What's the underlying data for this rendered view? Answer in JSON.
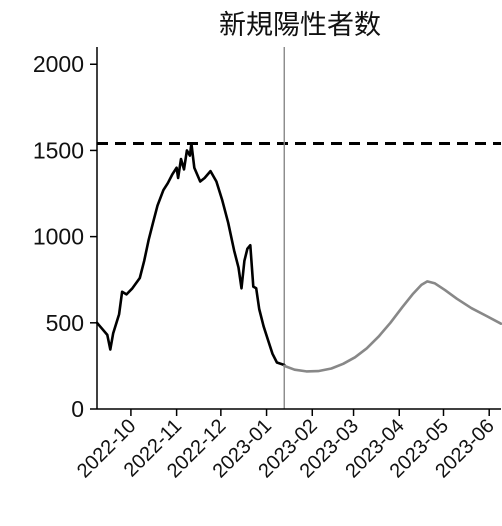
{
  "chart_data": {
    "type": "line",
    "title": "新規陽性者数",
    "xlabel": "",
    "ylabel": "",
    "xlim": [
      "2022-09-08",
      "2023-06-09"
    ],
    "ylim": [
      0,
      2100
    ],
    "y_ticks": [
      0,
      500,
      1000,
      1500,
      2000
    ],
    "x_tick_labels": [
      "2022-10",
      "2022-11",
      "2022-12",
      "2023-01",
      "2023-02",
      "2023-03",
      "2023-04",
      "2023-05",
      "2023-06"
    ],
    "x_tick_dates": [
      "2022-10-01",
      "2022-11-01",
      "2022-12-01",
      "2023-01-01",
      "2023-02-01",
      "2023-03-01",
      "2023-04-01",
      "2023-05-01",
      "2023-06-01"
    ],
    "reference_line": {
      "y": 1540,
      "style": "dashed",
      "color": "#000000"
    },
    "vertical_marker": {
      "x": "2023-01-13",
      "color": "#888888"
    },
    "series": [
      {
        "role": "observed",
        "color": "#000000",
        "points": [
          [
            "2022-09-08",
            500
          ],
          [
            "2022-09-12",
            460
          ],
          [
            "2022-09-15",
            430
          ],
          [
            "2022-09-17",
            345
          ],
          [
            "2022-09-19",
            440
          ],
          [
            "2022-09-23",
            550
          ],
          [
            "2022-09-25",
            680
          ],
          [
            "2022-09-28",
            665
          ],
          [
            "2022-10-02",
            700
          ],
          [
            "2022-10-07",
            760
          ],
          [
            "2022-10-10",
            860
          ],
          [
            "2022-10-13",
            980
          ],
          [
            "2022-10-16",
            1080
          ],
          [
            "2022-10-19",
            1180
          ],
          [
            "2022-10-23",
            1270
          ],
          [
            "2022-10-26",
            1310
          ],
          [
            "2022-10-29",
            1360
          ],
          [
            "2022-11-01",
            1400
          ],
          [
            "2022-11-02",
            1340
          ],
          [
            "2022-11-04",
            1450
          ],
          [
            "2022-11-06",
            1390
          ],
          [
            "2022-11-08",
            1500
          ],
          [
            "2022-11-10",
            1470
          ],
          [
            "2022-11-11",
            1540
          ],
          [
            "2022-11-13",
            1400
          ],
          [
            "2022-11-17",
            1320
          ],
          [
            "2022-11-20",
            1340
          ],
          [
            "2022-11-24",
            1380
          ],
          [
            "2022-11-28",
            1320
          ],
          [
            "2022-12-02",
            1210
          ],
          [
            "2022-12-06",
            1080
          ],
          [
            "2022-12-10",
            920
          ],
          [
            "2022-12-13",
            820
          ],
          [
            "2022-12-15",
            700
          ],
          [
            "2022-12-17",
            860
          ],
          [
            "2022-12-19",
            930
          ],
          [
            "2022-12-21",
            950
          ],
          [
            "2022-12-23",
            710
          ],
          [
            "2022-12-25",
            700
          ],
          [
            "2022-12-27",
            580
          ],
          [
            "2022-12-30",
            480
          ],
          [
            "2023-01-02",
            400
          ],
          [
            "2023-01-05",
            320
          ],
          [
            "2023-01-08",
            270
          ],
          [
            "2023-01-13",
            255
          ]
        ]
      },
      {
        "role": "projection",
        "color": "#888888",
        "points": [
          [
            "2023-01-13",
            250
          ],
          [
            "2023-01-20",
            228
          ],
          [
            "2023-01-28",
            218
          ],
          [
            "2023-02-05",
            220
          ],
          [
            "2023-02-14",
            235
          ],
          [
            "2023-02-22",
            262
          ],
          [
            "2023-03-02",
            300
          ],
          [
            "2023-03-10",
            352
          ],
          [
            "2023-03-18",
            420
          ],
          [
            "2023-03-26",
            500
          ],
          [
            "2023-04-03",
            590
          ],
          [
            "2023-04-10",
            665
          ],
          [
            "2023-04-16",
            720
          ],
          [
            "2023-04-20",
            740
          ],
          [
            "2023-04-25",
            730
          ],
          [
            "2023-05-02",
            690
          ],
          [
            "2023-05-10",
            640
          ],
          [
            "2023-05-20",
            585
          ],
          [
            "2023-05-30",
            540
          ],
          [
            "2023-06-09",
            495
          ]
        ]
      }
    ]
  }
}
